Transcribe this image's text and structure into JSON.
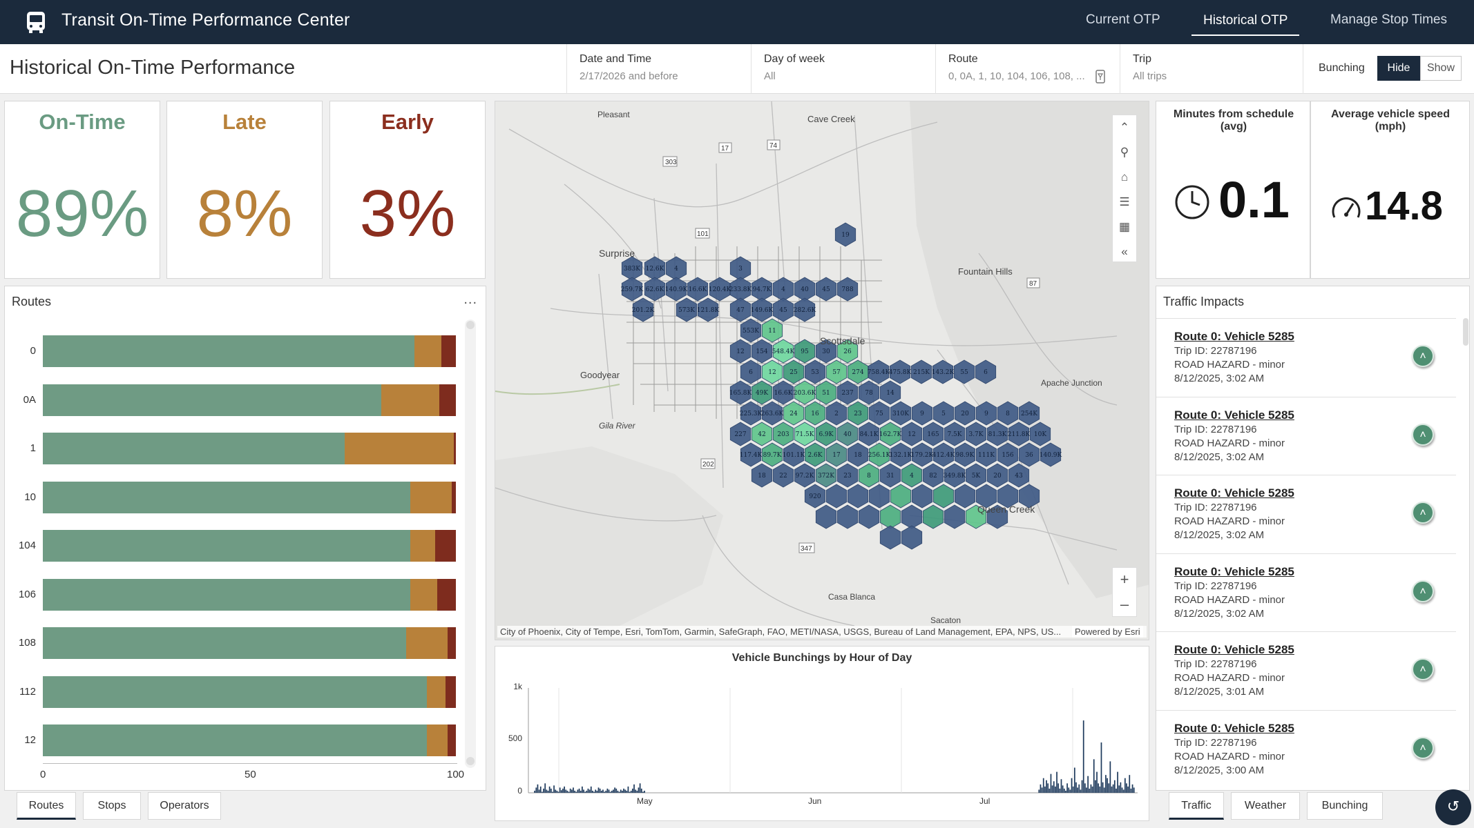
{
  "app": {
    "title": "Transit On-Time Performance Center",
    "nav": [
      "Current OTP",
      "Historical OTP",
      "Manage Stop Times"
    ],
    "active_nav": "Historical OTP"
  },
  "header": {
    "page_title": "Historical On-Time Performance",
    "filters": [
      {
        "label": "Date and Time",
        "value": "2/17/2026 and before"
      },
      {
        "label": "Day of week",
        "value": "All"
      },
      {
        "label": "Route",
        "value": "0, 0A, 1, 10, 104, 106, 108, ..."
      },
      {
        "label": "Trip",
        "value": "All trips"
      }
    ],
    "bunching": {
      "label": "Bunching",
      "hide": "Hide",
      "show": "Show",
      "selected": "Hide"
    }
  },
  "kpis": [
    {
      "title": "On-Time",
      "value": "89%",
      "color": "#6a9b82"
    },
    {
      "title": "Late",
      "value": "8%",
      "color": "#b8813a"
    },
    {
      "title": "Early",
      "value": "3%",
      "color": "#8b2e1e"
    }
  ],
  "routes_panel": {
    "title": "Routes",
    "menu": "..."
  },
  "chart_data": [
    {
      "type": "bar",
      "orientation": "horizontal",
      "stacked": true,
      "categories": [
        "0",
        "0A",
        "1",
        "10",
        "104",
        "106",
        "108",
        "112",
        "12"
      ],
      "series": [],
      "segments": {
        "on_time": [
          90,
          82,
          73,
          89,
          89,
          89,
          88,
          93,
          93
        ],
        "late": [
          6.5,
          14,
          26.5,
          10,
          6,
          6.5,
          10,
          4.5,
          5
        ],
        "early": [
          3.5,
          4,
          0.5,
          1,
          5,
          4.5,
          2,
          2.5,
          2
        ]
      },
      "colors": {
        "on_time": "#6f9b84",
        "late": "#b8813a",
        "early": "#7e2c1e"
      },
      "xlim": [
        0,
        100
      ],
      "xticks": [
        "0",
        "50",
        "100"
      ],
      "title": "",
      "xlabel": "",
      "ylabel": ""
    },
    {
      "type": "bar",
      "title": "Vehicle Bunchings by Hour of Day",
      "yticks": [
        "1k",
        "500",
        "0"
      ],
      "ylim": [
        0,
        1000
      ],
      "months": [
        "May",
        "Jun",
        "Jul"
      ],
      "color": "#1e3a5c",
      "values": [
        0,
        0,
        20,
        50,
        80,
        30,
        60,
        10,
        40,
        90,
        30,
        20,
        60,
        40,
        10,
        70,
        30,
        20,
        10,
        50,
        25,
        40,
        60,
        30,
        20,
        10,
        40,
        30,
        50,
        20,
        10,
        30,
        40,
        20,
        60,
        30,
        10,
        20,
        40,
        30,
        60,
        20,
        10,
        30,
        20,
        50,
        40,
        20,
        30,
        10,
        20,
        40,
        30,
        10,
        20,
        30,
        50,
        40,
        20,
        10,
        30,
        20,
        40,
        30,
        20,
        60,
        10,
        20,
        40,
        80,
        30,
        20,
        50,
        90,
        40,
        10,
        20,
        0,
        0,
        0,
        0,
        0,
        0,
        0,
        0,
        0,
        0,
        0,
        0,
        0,
        0,
        0,
        0,
        0,
        0,
        0,
        0,
        0,
        0,
        0,
        0,
        0,
        0,
        0,
        0,
        0,
        0,
        0,
        0,
        0,
        0,
        0,
        0,
        0,
        0,
        0,
        0,
        0,
        0,
        0,
        0,
        0,
        0,
        0,
        0,
        0,
        0,
        0,
        0,
        0,
        0,
        0,
        0,
        0,
        0,
        0,
        0,
        0,
        0,
        0,
        0,
        0,
        0,
        0,
        0,
        0,
        0,
        0,
        0,
        0,
        0,
        0,
        0,
        0,
        0,
        0,
        0,
        0,
        0,
        0,
        0,
        0,
        0,
        0,
        0,
        0,
        0,
        0,
        0,
        0,
        0,
        0,
        0,
        0,
        0,
        0,
        0,
        0,
        0,
        0,
        0,
        0,
        0,
        0,
        0,
        0,
        0,
        0,
        0,
        0,
        0,
        0,
        0,
        0,
        0,
        0,
        0,
        0,
        0,
        0,
        0,
        0,
        0,
        0,
        0,
        0,
        0,
        0,
        0,
        0,
        0,
        0,
        0,
        0,
        0,
        0,
        0,
        0,
        0,
        0,
        0,
        0,
        0,
        0,
        0,
        0,
        0,
        0,
        0,
        0,
        0,
        0,
        0,
        0,
        0,
        0,
        0,
        0,
        0,
        0,
        0,
        0,
        0,
        0,
        0,
        0,
        0,
        0,
        0,
        0,
        0,
        0,
        0,
        0,
        0,
        0,
        0,
        0,
        0,
        0,
        0,
        0,
        0,
        0,
        0,
        0,
        0,
        0,
        0,
        0,
        0,
        0,
        0,
        0,
        0,
        0,
        0,
        0,
        0,
        0,
        0,
        0,
        0,
        0,
        0,
        0,
        0,
        0,
        0,
        0,
        0,
        0,
        0,
        0,
        0,
        0,
        0,
        0,
        0,
        0,
        0,
        0,
        0,
        0,
        0,
        0,
        0,
        0,
        0,
        0,
        0,
        0,
        0,
        0,
        0,
        0,
        0,
        0,
        0,
        0,
        0,
        0,
        0,
        0,
        0,
        0,
        0,
        0,
        0,
        0,
        0,
        0,
        0,
        0,
        0,
        0,
        0,
        0,
        0,
        0,
        0,
        0,
        30,
        80,
        50,
        140,
        60,
        120,
        90,
        40,
        180,
        70,
        110,
        60,
        200,
        90,
        40,
        130,
        70,
        40,
        20,
        90,
        50,
        30,
        140,
        60,
        240,
        100,
        50,
        80,
        30,
        120,
        690,
        90,
        50,
        160,
        40,
        80,
        60,
        320,
        120,
        200,
        90,
        60,
        480,
        100,
        50,
        170,
        140,
        90,
        300,
        60,
        80,
        120,
        40,
        200,
        70,
        100,
        50,
        30,
        140,
        90,
        60,
        170,
        40,
        80,
        50
      ]
    }
  ],
  "map": {
    "places": [
      "Cave Creek",
      "Surprise",
      "Fountain Hills",
      "Goodyear",
      "Gila River",
      "Apache Junction",
      "Queen Creek",
      "Casa Blanca",
      "Sacaton",
      "Pleasant",
      "Scottsdale"
    ],
    "highways": [
      "303",
      "74",
      "17",
      "101",
      "87",
      "202",
      "347"
    ],
    "attribution": "City of Phoenix, City of Tempe, Esri, TomTom, Garmin, SafeGraph, FAO, METI/NASA, USGS, Bureau of Land Management, EPA, NPS, US...",
    "powered": "Powered by Esri",
    "hex_labels": [
      "19",
      "383K",
      "12.6K",
      "4",
      "3",
      "259.7K",
      "62.6K",
      "140.9K",
      "16.6K",
      "120.4K",
      "233.8K",
      "94.7K",
      "4",
      "40",
      "45",
      "788",
      "201.2K",
      "573K",
      "121.8K",
      "47",
      "149.6K",
      "45",
      "282.6K",
      "553K",
      "11",
      "12",
      "154",
      "548.4K",
      "95",
      "30",
      "26",
      "6",
      "12",
      "25",
      "53",
      "57",
      "274",
      "758.4K",
      "475.8K",
      "215K",
      "143.2K",
      "55",
      "6",
      "165.8K",
      "49K",
      "16.6K",
      "203.6K",
      "51",
      "237",
      "78",
      "14",
      "225.3K",
      "263.6K",
      "24",
      "16",
      "2",
      "23",
      "75",
      "310K",
      "9",
      "5",
      "20",
      "9",
      "8",
      "254K",
      "227",
      "42",
      "203",
      "71.5K",
      "6.9K",
      "40",
      "84.1K",
      "162.7K",
      "12",
      "165",
      "7.5K",
      "3.7K",
      "81.3K",
      "211.8K",
      "10K",
      "117.4K",
      "89.7K",
      "101.1K",
      "2.6K",
      "17",
      "18",
      "256.1K",
      "132.1K",
      "179.2K",
      "412.4K",
      "98.9K",
      "111K",
      "156",
      "36",
      "140.9K",
      "18",
      "22",
      "97.2K",
      "372K",
      "23",
      "8",
      "31",
      "4",
      "82",
      "349.8K",
      "5K",
      "20",
      "43",
      "920"
    ]
  },
  "metrics": [
    {
      "label": "Minutes from schedule (avg)",
      "value": "0.1",
      "icon": "clock-icon"
    },
    {
      "label": "Average vehicle speed (mph)",
      "value": "14.8",
      "icon": "speedometer-icon"
    }
  ],
  "traffic": {
    "title": "Traffic Impacts",
    "items": [
      {
        "route": "Route 0: Vehicle 5285",
        "trip": "Trip ID: 22787196",
        "hazard": "ROAD HAZARD - minor",
        "time": "8/12/2025, 3:02 AM"
      },
      {
        "route": "Route 0: Vehicle 5285",
        "trip": "Trip ID: 22787196",
        "hazard": "ROAD HAZARD - minor",
        "time": "8/12/2025, 3:02 AM"
      },
      {
        "route": "Route 0: Vehicle 5285",
        "trip": "Trip ID: 22787196",
        "hazard": "ROAD HAZARD - minor",
        "time": "8/12/2025, 3:02 AM"
      },
      {
        "route": "Route 0: Vehicle 5285",
        "trip": "Trip ID: 22787196",
        "hazard": "ROAD HAZARD - minor",
        "time": "8/12/2025, 3:02 AM"
      },
      {
        "route": "Route 0: Vehicle 5285",
        "trip": "Trip ID: 22787196",
        "hazard": "ROAD HAZARD - minor",
        "time": "8/12/2025, 3:01 AM"
      },
      {
        "route": "Route 0: Vehicle 5285",
        "trip": "Trip ID: 22787196",
        "hazard": "ROAD HAZARD - minor",
        "time": "8/12/2025, 3:00 AM"
      }
    ]
  },
  "bottom_tabs_left": [
    "Routes",
    "Stops",
    "Operators"
  ],
  "bottom_tabs_right": [
    "Traffic",
    "Weather",
    "Bunching"
  ]
}
